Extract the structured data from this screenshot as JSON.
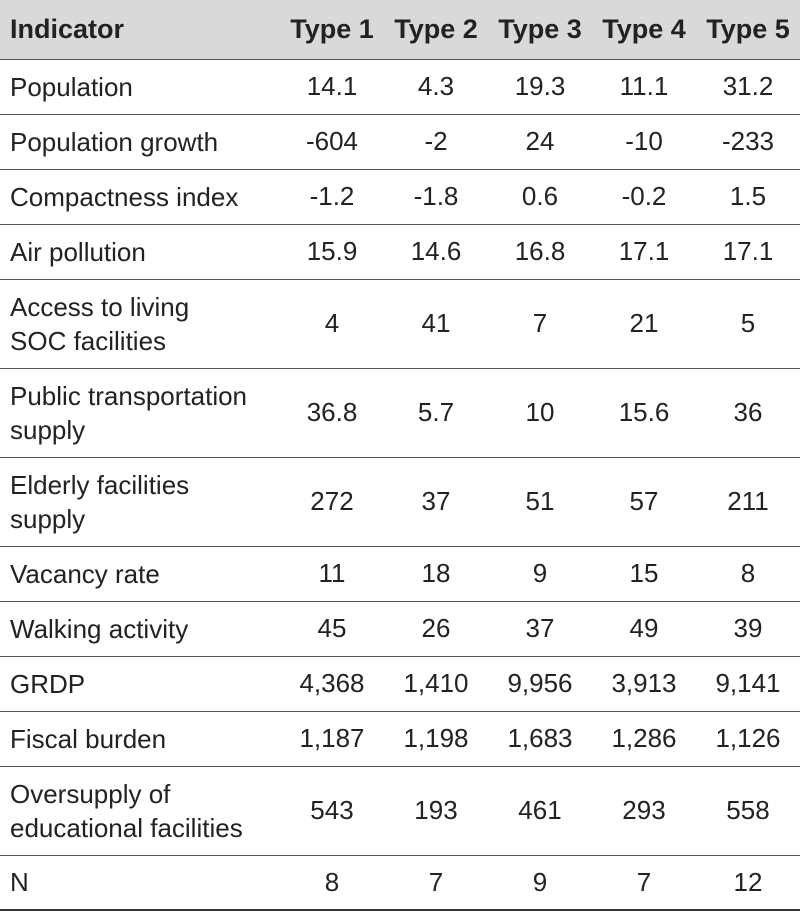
{
  "table": {
    "columns": [
      "Indicator",
      "Type 1",
      "Type 2",
      "Type 3",
      "Type 4",
      "Type 5"
    ],
    "rows": [
      {
        "label": [
          "Population"
        ],
        "values": [
          "14.1",
          "4.3",
          "19.3",
          "11.1",
          "31.2"
        ]
      },
      {
        "label": [
          "Population growth"
        ],
        "values": [
          "-604",
          "-2",
          "24",
          "-10",
          "-233"
        ]
      },
      {
        "label": [
          "Compactness index"
        ],
        "values": [
          "-1.2",
          "-1.8",
          "0.6",
          "-0.2",
          "1.5"
        ]
      },
      {
        "label": [
          "Air pollution"
        ],
        "values": [
          "15.9",
          "14.6",
          "16.8",
          "17.1",
          "17.1"
        ]
      },
      {
        "label": [
          "Access to living",
          "SOC facilities"
        ],
        "values": [
          "4",
          "41",
          "7",
          "21",
          "5"
        ]
      },
      {
        "label": [
          "Public transportation",
          "supply"
        ],
        "values": [
          "36.8",
          "5.7",
          "10",
          "15.6",
          "36"
        ]
      },
      {
        "label": [
          "Elderly facilities",
          "supply"
        ],
        "values": [
          "272",
          "37",
          "51",
          "57",
          "211"
        ]
      },
      {
        "label": [
          "Vacancy rate"
        ],
        "values": [
          "11",
          "18",
          "9",
          "15",
          "8"
        ]
      },
      {
        "label": [
          "Walking activity"
        ],
        "values": [
          "45",
          "26",
          "37",
          "49",
          "39"
        ]
      },
      {
        "label": [
          "GRDP"
        ],
        "values": [
          "4,368",
          "1,410",
          "9,956",
          "3,913",
          "9,141"
        ]
      },
      {
        "label": [
          "Fiscal burden"
        ],
        "values": [
          "1,187",
          "1,198",
          "1,683",
          "1,286",
          "1,126"
        ]
      },
      {
        "label": [
          "Oversupply of",
          "educational facilities"
        ],
        "values": [
          "543",
          "193",
          "461",
          "293",
          "558"
        ]
      },
      {
        "label": [
          "N"
        ],
        "values": [
          "8",
          "7",
          "9",
          "7",
          "12"
        ]
      }
    ]
  }
}
